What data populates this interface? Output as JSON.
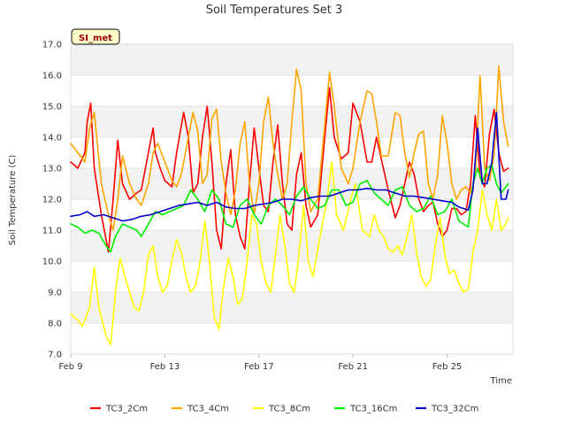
{
  "chart_data": {
    "type": "line",
    "title": "Soil Temperatures Set 3",
    "xlabel": "Time",
    "ylabel": "Soil Temperature (C)",
    "badge": "SI_met",
    "xlim": [
      0,
      18.8
    ],
    "ylim": [
      7.0,
      17.0
    ],
    "y_ticks": [
      7.0,
      8.0,
      9.0,
      10.0,
      11.0,
      12.0,
      13.0,
      14.0,
      15.0,
      16.0,
      17.0
    ],
    "y_tick_labels": [
      "7.0",
      "8.0",
      "9.0",
      "10.0",
      "11.0",
      "12.0",
      "13.0",
      "14.0",
      "15.0",
      "16.0",
      "17.0"
    ],
    "x_ticks": [
      0,
      4,
      8,
      12,
      16
    ],
    "x_tick_labels": [
      "Feb 9",
      "Feb 13",
      "Feb 17",
      "Feb 21",
      "Feb 25"
    ],
    "grid": true,
    "legend_position": "bottom",
    "series": [
      {
        "name": "TC3_2Cm",
        "color": "#ff0000",
        "x": [
          0.0,
          0.3,
          0.6,
          0.7,
          0.85,
          1.0,
          1.3,
          1.6,
          1.8,
          2.0,
          2.2,
          2.5,
          2.8,
          3.0,
          3.3,
          3.5,
          3.6,
          3.8,
          4.0,
          4.3,
          4.5,
          4.8,
          5.0,
          5.2,
          5.4,
          5.6,
          5.8,
          6.0,
          6.2,
          6.4,
          6.6,
          6.8,
          7.0,
          7.2,
          7.4,
          7.6,
          7.8,
          8.0,
          8.2,
          8.4,
          8.6,
          8.8,
          9.0,
          9.2,
          9.4,
          9.6,
          9.8,
          10.0,
          10.2,
          10.5,
          10.8,
          11.0,
          11.2,
          11.5,
          11.8,
          12.0,
          12.3,
          12.6,
          12.8,
          13.0,
          13.2,
          13.5,
          13.8,
          14.0,
          14.2,
          14.4,
          14.6,
          14.8,
          15.0,
          15.2,
          15.4,
          15.6,
          15.8,
          16.0,
          16.2,
          16.4,
          16.6,
          16.8,
          17.0,
          17.2,
          17.4,
          17.6,
          17.8,
          18.0,
          18.2,
          18.4,
          18.6
        ],
        "y": [
          13.2,
          13.0,
          13.5,
          14.5,
          15.1,
          13.0,
          11.5,
          10.3,
          12.0,
          13.9,
          12.5,
          12.0,
          12.2,
          12.3,
          13.5,
          14.3,
          13.5,
          13.0,
          12.6,
          12.4,
          13.5,
          14.8,
          14.0,
          12.2,
          12.5,
          14.0,
          15.0,
          13.2,
          11.0,
          10.4,
          12.5,
          13.6,
          11.5,
          10.8,
          10.4,
          12.5,
          14.3,
          13.0,
          11.8,
          11.6,
          13.2,
          14.4,
          12.5,
          11.2,
          11.0,
          12.8,
          13.5,
          11.8,
          11.1,
          11.5,
          14.0,
          15.6,
          14.0,
          13.3,
          13.5,
          15.1,
          14.5,
          13.2,
          13.2,
          14.0,
          13.3,
          12.3,
          11.4,
          11.8,
          12.5,
          13.2,
          12.8,
          12.0,
          11.6,
          11.8,
          11.9,
          11.2,
          10.8,
          11.0,
          11.7,
          11.7,
          11.5,
          11.6,
          12.5,
          14.7,
          12.7,
          12.4,
          14.1,
          14.9,
          13.5,
          12.9,
          13.0
        ]
      },
      {
        "name": "TC3_4Cm",
        "color": "#ffa500",
        "x": [
          0.0,
          0.3,
          0.6,
          0.8,
          1.0,
          1.3,
          1.6,
          1.8,
          2.0,
          2.2,
          2.5,
          2.8,
          3.0,
          3.3,
          3.5,
          3.7,
          4.0,
          4.3,
          4.5,
          4.7,
          5.0,
          5.2,
          5.4,
          5.6,
          5.8,
          6.0,
          6.2,
          6.4,
          6.6,
          6.8,
          7.0,
          7.2,
          7.4,
          7.6,
          7.8,
          8.0,
          8.2,
          8.4,
          8.6,
          8.8,
          9.0,
          9.2,
          9.4,
          9.6,
          9.8,
          10.0,
          10.2,
          10.5,
          10.8,
          11.0,
          11.2,
          11.5,
          11.8,
          12.0,
          12.3,
          12.6,
          12.8,
          13.0,
          13.2,
          13.5,
          13.8,
          14.0,
          14.2,
          14.4,
          14.6,
          14.8,
          15.0,
          15.2,
          15.4,
          15.6,
          15.8,
          16.0,
          16.2,
          16.4,
          16.6,
          16.8,
          17.0,
          17.2,
          17.4,
          17.6,
          17.8,
          18.0,
          18.2,
          18.4,
          18.6
        ],
        "y": [
          13.8,
          13.5,
          13.2,
          14.3,
          14.8,
          12.5,
          11.5,
          11.0,
          12.0,
          13.4,
          12.5,
          12.0,
          11.8,
          12.5,
          13.5,
          13.8,
          13.2,
          12.6,
          12.4,
          12.8,
          14.0,
          14.8,
          14.2,
          12.5,
          12.8,
          14.6,
          14.9,
          13.2,
          12.2,
          11.5,
          12.3,
          13.8,
          14.5,
          12.5,
          11.5,
          12.5,
          14.5,
          15.3,
          13.8,
          12.8,
          12.0,
          12.5,
          14.5,
          16.2,
          15.5,
          12.5,
          11.6,
          12.0,
          14.4,
          16.1,
          15.0,
          13.0,
          12.5,
          13.0,
          14.5,
          15.5,
          15.4,
          14.5,
          13.4,
          13.4,
          14.8,
          14.7,
          13.5,
          12.7,
          13.5,
          14.1,
          14.2,
          12.5,
          12.0,
          12.8,
          14.7,
          13.8,
          12.5,
          12.0,
          12.3,
          12.4,
          12.2,
          12.8,
          16.0,
          13.0,
          12.6,
          13.4,
          16.3,
          14.5,
          13.7
        ]
      },
      {
        "name": "TC3_8Cm",
        "color": "#ffff00",
        "x": [
          0.0,
          0.3,
          0.5,
          0.8,
          1.0,
          1.2,
          1.5,
          1.7,
          1.9,
          2.1,
          2.3,
          2.5,
          2.7,
          2.9,
          3.1,
          3.3,
          3.5,
          3.7,
          3.9,
          4.1,
          4.3,
          4.5,
          4.7,
          4.9,
          5.1,
          5.3,
          5.5,
          5.7,
          5.9,
          6.1,
          6.3,
          6.5,
          6.7,
          6.9,
          7.1,
          7.3,
          7.5,
          7.7,
          7.9,
          8.1,
          8.3,
          8.5,
          8.7,
          8.9,
          9.1,
          9.3,
          9.5,
          9.7,
          9.9,
          10.1,
          10.3,
          10.6,
          10.9,
          11.1,
          11.3,
          11.6,
          11.9,
          12.1,
          12.4,
          12.7,
          12.9,
          13.1,
          13.3,
          13.5,
          13.7,
          13.9,
          14.1,
          14.3,
          14.5,
          14.7,
          14.9,
          15.1,
          15.3,
          15.5,
          15.7,
          15.9,
          16.1,
          16.3,
          16.5,
          16.7,
          16.9,
          17.1,
          17.3,
          17.5,
          17.7,
          17.9,
          18.1,
          18.3,
          18.5,
          18.6
        ],
        "y": [
          8.3,
          8.1,
          7.9,
          8.5,
          9.8,
          8.5,
          7.6,
          7.3,
          9.0,
          10.1,
          9.5,
          9.0,
          8.5,
          8.4,
          9.0,
          10.2,
          10.5,
          9.5,
          9.0,
          9.2,
          10.0,
          10.7,
          10.3,
          9.5,
          9.0,
          9.2,
          10.0,
          11.3,
          10.0,
          8.2,
          7.8,
          9.2,
          10.1,
          9.5,
          8.6,
          8.8,
          10.0,
          11.5,
          11.2,
          10.0,
          9.3,
          9.0,
          10.2,
          11.5,
          10.5,
          9.3,
          9.0,
          10.2,
          11.8,
          10.0,
          9.5,
          10.8,
          12.0,
          13.2,
          11.5,
          11.0,
          12.0,
          12.5,
          11.0,
          10.8,
          11.5,
          11.0,
          10.8,
          10.4,
          10.3,
          10.5,
          10.2,
          10.8,
          11.5,
          10.3,
          9.5,
          9.2,
          9.4,
          10.5,
          11.4,
          10.2,
          9.6,
          9.7,
          9.3,
          9.0,
          9.1,
          10.3,
          11.0,
          12.3,
          11.5,
          11.0,
          12.0,
          11.0,
          11.2,
          11.4
        ]
      },
      {
        "name": "TC3_16Cm",
        "color": "#00ee00",
        "x": [
          0.0,
          0.3,
          0.6,
          0.9,
          1.2,
          1.5,
          1.7,
          1.9,
          2.2,
          2.5,
          2.8,
          3.0,
          3.3,
          3.6,
          3.9,
          4.2,
          4.5,
          4.8,
          5.1,
          5.4,
          5.7,
          6.0,
          6.3,
          6.6,
          6.9,
          7.2,
          7.5,
          7.8,
          8.1,
          8.4,
          8.7,
          9.0,
          9.3,
          9.6,
          9.9,
          10.2,
          10.5,
          10.8,
          11.1,
          11.4,
          11.7,
          12.0,
          12.3,
          12.6,
          12.9,
          13.2,
          13.5,
          13.8,
          14.1,
          14.4,
          14.7,
          15.0,
          15.3,
          15.6,
          15.9,
          16.2,
          16.5,
          16.7,
          16.9,
          17.1,
          17.3,
          17.5,
          17.7,
          17.9,
          18.1,
          18.3,
          18.5,
          18.6
        ],
        "y": [
          11.2,
          11.1,
          10.9,
          11.0,
          10.9,
          10.5,
          10.3,
          10.8,
          11.2,
          11.1,
          11.0,
          10.8,
          11.2,
          11.6,
          11.5,
          11.6,
          11.7,
          11.8,
          12.3,
          12.0,
          11.6,
          12.3,
          12.0,
          11.2,
          11.1,
          11.8,
          12.0,
          11.5,
          11.2,
          11.8,
          12.0,
          11.8,
          11.5,
          12.1,
          12.4,
          12.0,
          11.7,
          11.8,
          12.3,
          12.3,
          11.8,
          11.9,
          12.5,
          12.6,
          12.2,
          12.0,
          11.8,
          12.3,
          12.4,
          11.8,
          11.6,
          11.7,
          12.1,
          11.5,
          11.6,
          12.0,
          11.3,
          11.2,
          11.1,
          12.5,
          13.0,
          12.5,
          13.0,
          13.1,
          12.5,
          12.2,
          12.4,
          12.5
        ]
      },
      {
        "name": "TC3_32Cm",
        "color": "#0000cc",
        "x": [
          0.0,
          0.4,
          0.7,
          1.0,
          1.4,
          1.8,
          2.2,
          2.6,
          3.0,
          3.4,
          3.8,
          4.2,
          4.6,
          5.0,
          5.4,
          5.8,
          6.2,
          6.6,
          7.0,
          7.4,
          7.8,
          8.2,
          8.6,
          9.0,
          9.4,
          9.8,
          10.2,
          10.6,
          11.0,
          11.4,
          11.8,
          12.2,
          12.6,
          13.0,
          13.4,
          13.8,
          14.2,
          14.6,
          15.0,
          15.4,
          15.8,
          16.2,
          16.5,
          16.7,
          16.9,
          17.1,
          17.3,
          17.5,
          17.7,
          17.9,
          18.1,
          18.3,
          18.5,
          18.6
        ],
        "y": [
          11.45,
          11.5,
          11.6,
          11.45,
          11.5,
          11.4,
          11.3,
          11.35,
          11.45,
          11.5,
          11.6,
          11.7,
          11.8,
          11.85,
          11.9,
          11.8,
          11.9,
          11.75,
          11.7,
          11.7,
          11.8,
          11.85,
          11.9,
          12.0,
          12.0,
          11.95,
          12.05,
          12.1,
          12.1,
          12.2,
          12.3,
          12.3,
          12.35,
          12.3,
          12.3,
          12.2,
          12.1,
          12.1,
          12.05,
          12.0,
          11.95,
          11.9,
          11.75,
          11.7,
          11.65,
          12.3,
          14.3,
          12.5,
          12.5,
          13.2,
          14.8,
          12.0,
          12.0,
          12.3
        ]
      }
    ]
  }
}
